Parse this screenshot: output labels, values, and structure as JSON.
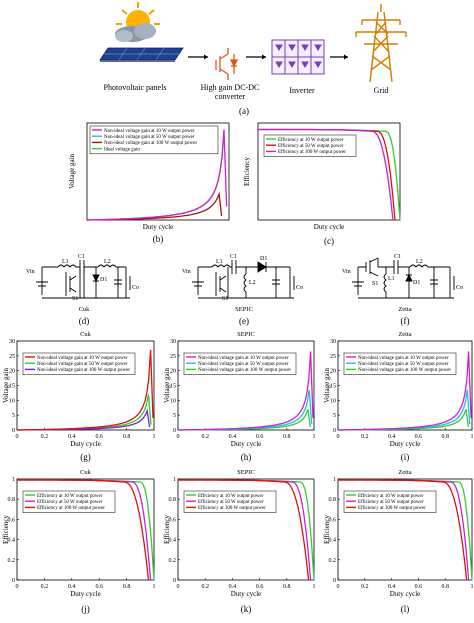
{
  "pipeline": {
    "labels": [
      "Photovoltaic panels",
      "High gain DC-DC",
      "converter",
      "Inverter",
      "Grid"
    ],
    "panel_label": "(a)"
  },
  "circuits": {
    "names": [
      "Cuk",
      "SEPIC",
      "Zetta"
    ],
    "panel_labels": [
      "(d)",
      "(e)",
      "(f)"
    ],
    "component_labels": {
      "cuk": [
        "Vin",
        "L1",
        "C1",
        "L2",
        "D1",
        "S1",
        "Co"
      ],
      "sepic": [
        "Vin",
        "L1",
        "C1",
        "D1",
        "L2",
        "S1",
        "Co"
      ],
      "zetta": [
        "Vin",
        "S1",
        "L1",
        "C1",
        "L2",
        "D1",
        "Co"
      ]
    }
  },
  "colors": {
    "green": "#33cc33",
    "red": "#dd1111",
    "magenta": "#cc22cc",
    "cyan": "#22bbee",
    "darkred": "#aa1111",
    "purple": "#7722cc",
    "pink": "#dd3377"
  },
  "chart_data": [
    {
      "id": "b",
      "type": "line",
      "panel_label": "(b)",
      "title": "",
      "xlabel": "Duty cycle",
      "ylabel": "Voltage gain",
      "xlim": [
        0,
        1
      ],
      "ylim": [
        0,
        30
      ],
      "xticks": [],
      "yticks": [],
      "legend": [
        "Non-ideal voltage gain at 10 W output power",
        "Non-ideal voltage gain at 50 W output power",
        "Non-ideal voltage gain at 100 W output power",
        "Ideal voltage gain"
      ],
      "legend_colors": [
        "#cc22cc",
        "#22bbee",
        "#aa1111",
        "#33cc33"
      ],
      "legend_position": "top-left",
      "series": [
        {
          "color": "#33cc33",
          "kind": "ideal",
          "x_end": 0.965
        },
        {
          "color": "#aa1111",
          "kind": "gain",
          "peak_x": 0.93,
          "peak_y": 8
        },
        {
          "color": "#cc22cc",
          "kind": "gain",
          "peak_x": 0.965,
          "peak_y": 28
        }
      ]
    },
    {
      "id": "c",
      "type": "line",
      "panel_label": "(c)",
      "title": "",
      "xlabel": "Duty cycle",
      "ylabel": "Efficiency",
      "xlim": [
        0,
        1
      ],
      "ylim": [
        0,
        1.05
      ],
      "xticks": [],
      "yticks": [],
      "legend": [
        "Efficiency at 10 W output power",
        "Efficiency at 50 W output power",
        "Efficiency at 100 W output power"
      ],
      "legend_colors": [
        "#33cc33",
        "#dd1111",
        "#cc22cc"
      ],
      "legend_position": "top-left",
      "series": [
        {
          "color": "#33cc33",
          "kind": "eff",
          "top": 0.98,
          "knee": 0.9,
          "end": 1.0
        },
        {
          "color": "#dd1111",
          "kind": "eff",
          "top": 0.98,
          "knee": 0.84,
          "end": 0.965
        },
        {
          "color": "#cc22cc",
          "kind": "eff",
          "top": 0.98,
          "knee": 0.8,
          "end": 0.95
        }
      ]
    },
    {
      "id": "g",
      "type": "line",
      "panel_label": "(g)",
      "title": "Cuk",
      "xlabel": "Duty cycle",
      "ylabel": "Voltage gain",
      "xlim": [
        0,
        1
      ],
      "ylim": [
        0,
        30
      ],
      "xticks": [
        "0",
        "0.2",
        "0.4",
        "0.6",
        "0.8",
        "1"
      ],
      "yticks": [
        "0",
        "5",
        "10",
        "15",
        "20",
        "25",
        "30"
      ],
      "legend": [
        "Non-ideal voltage gain at 10 W output power",
        "Non-ideal voltage gain at 50 W output power",
        "Non-ideal voltage gain at 100 W output power"
      ],
      "legend_colors": [
        "#dd1111",
        "#33cc33",
        "#7722cc"
      ],
      "legend_position": "top-left",
      "series": [
        {
          "color": "#33cc33",
          "kind": "gain",
          "peak_x": 0.96,
          "peak_y": 12
        },
        {
          "color": "#7722cc",
          "kind": "gain",
          "peak_x": 0.95,
          "peak_y": 6.5
        },
        {
          "color": "#dd1111",
          "kind": "gain",
          "peak_x": 0.975,
          "peak_y": 27
        }
      ]
    },
    {
      "id": "h",
      "type": "line",
      "panel_label": "(h)",
      "title": "SEPIC",
      "xlabel": "Duty cycle",
      "ylabel": "Voltage gain",
      "xlim": [
        0,
        1
      ],
      "ylim": [
        0,
        30
      ],
      "xticks": [
        "0",
        "0.2",
        "0.4",
        "0.6",
        "0.8",
        "1"
      ],
      "yticks": [
        "0",
        "5",
        "10",
        "15",
        "20",
        "25",
        "30"
      ],
      "legend": [
        "Non-ideal voltage gain at 10 W output power",
        "Non-ideal voltage gain at 50 W output power",
        "Non-ideal voltage gain at 100 W output power"
      ],
      "legend_colors": [
        "#cc22cc",
        "#22bbee",
        "#33cc33"
      ],
      "legend_position": "top-left",
      "series": [
        {
          "color": "#33cc33",
          "kind": "gain",
          "peak_x": 0.955,
          "peak_y": 7
        },
        {
          "color": "#22bbee",
          "kind": "gain",
          "peak_x": 0.965,
          "peak_y": 13.5
        },
        {
          "color": "#cc22cc",
          "kind": "gain",
          "peak_x": 0.975,
          "peak_y": 26.5
        }
      ]
    },
    {
      "id": "i",
      "type": "line",
      "panel_label": "(i)",
      "title": "Zetta",
      "xlabel": "Duty cycle",
      "ylabel": "Voltage gain",
      "xlim": [
        0,
        1
      ],
      "ylim": [
        0,
        30
      ],
      "xticks": [
        "0",
        "0.2",
        "0.4",
        "0.6",
        "0.8",
        "1"
      ],
      "yticks": [
        "0",
        "5",
        "10",
        "15",
        "20",
        "25",
        "30"
      ],
      "legend": [
        "Non-ideal voltage gain at 10 W output power",
        "Non-ideal voltage gain at 50 W output power",
        "Non-ideal voltage gain at 100 W output power"
      ],
      "legend_colors": [
        "#cc22cc",
        "#22bbee",
        "#33cc33"
      ],
      "legend_position": "top-left",
      "series": [
        {
          "color": "#33cc33",
          "kind": "gain",
          "peak_x": 0.955,
          "peak_y": 7
        },
        {
          "color": "#22bbee",
          "kind": "gain",
          "peak_x": 0.965,
          "peak_y": 13.5
        },
        {
          "color": "#cc22cc",
          "kind": "gain",
          "peak_x": 0.975,
          "peak_y": 26.5
        }
      ]
    },
    {
      "id": "j",
      "type": "line",
      "panel_label": "(j)",
      "title": "Cuk",
      "xlabel": "Duty cycle",
      "ylabel": "Efficiency",
      "xlim": [
        0,
        1
      ],
      "ylim": [
        0,
        1
      ],
      "xticks": [
        "0",
        "0.2",
        "0.4",
        "0.6",
        "0.8",
        "1"
      ],
      "yticks": [
        "0",
        "0.2",
        "0.4",
        "0.6",
        "0.8",
        "1"
      ],
      "legend": [
        "Efficiency at 10 W output power",
        "Efficiency at 50 W output power",
        "Efficiency at 100 W output power"
      ],
      "legend_colors": [
        "#33cc33",
        "#cc22cc",
        "#dd1111"
      ],
      "legend_position": "top-left",
      "series": [
        {
          "color": "#33cc33",
          "kind": "eff",
          "top": 0.99,
          "knee": 0.9,
          "end": 1.0
        },
        {
          "color": "#cc22cc",
          "kind": "eff",
          "top": 0.99,
          "knee": 0.84,
          "end": 0.975
        },
        {
          "color": "#dd1111",
          "kind": "eff",
          "top": 0.99,
          "knee": 0.78,
          "end": 0.96
        }
      ]
    },
    {
      "id": "k",
      "type": "line",
      "panel_label": "(k)",
      "title": "SEPIC",
      "xlabel": "Duty cycle",
      "ylabel": "Efficiency",
      "xlim": [
        0,
        1
      ],
      "ylim": [
        0,
        1
      ],
      "xticks": [
        "0",
        "0.2",
        "0.4",
        "0.6",
        "0.8",
        "1"
      ],
      "yticks": [
        "0",
        "0.2",
        "0.4",
        "0.6",
        "0.8",
        "1"
      ],
      "legend": [
        "Efficiency at 10 W output power",
        "Efficiency at 50 W output power",
        "Efficiency at 100 W output power"
      ],
      "legend_colors": [
        "#33cc33",
        "#cc22cc",
        "#dd1111"
      ],
      "legend_position": "top-left",
      "series": [
        {
          "color": "#33cc33",
          "kind": "eff",
          "top": 0.99,
          "knee": 0.9,
          "end": 1.0
        },
        {
          "color": "#cc22cc",
          "kind": "eff",
          "top": 0.99,
          "knee": 0.84,
          "end": 0.975
        },
        {
          "color": "#dd1111",
          "kind": "eff",
          "top": 0.99,
          "knee": 0.78,
          "end": 0.96
        }
      ]
    },
    {
      "id": "l",
      "type": "line",
      "panel_label": "(l)",
      "title": "Zetta",
      "xlabel": "Duty cycle",
      "ylabel": "Efficiency",
      "xlim": [
        0,
        1
      ],
      "ylim": [
        0,
        1
      ],
      "xticks": [
        "0",
        "0.2",
        "0.4",
        "0.6",
        "0.8",
        "1"
      ],
      "yticks": [
        "0",
        "0.2",
        "0.4",
        "0.6",
        "0.8",
        "1"
      ],
      "legend": [
        "Efficiency at 10 W output power",
        "Efficiency at 50 W output power",
        "Efficiency at 100 W output power"
      ],
      "legend_colors": [
        "#33cc33",
        "#cc22cc",
        "#dd1111"
      ],
      "legend_position": "top-left",
      "series": [
        {
          "color": "#33cc33",
          "kind": "eff",
          "top": 0.99,
          "knee": 0.9,
          "end": 1.0
        },
        {
          "color": "#cc22cc",
          "kind": "eff",
          "top": 0.99,
          "knee": 0.84,
          "end": 0.975
        },
        {
          "color": "#dd1111",
          "kind": "eff",
          "top": 0.99,
          "knee": 0.78,
          "end": 0.96
        }
      ]
    }
  ]
}
